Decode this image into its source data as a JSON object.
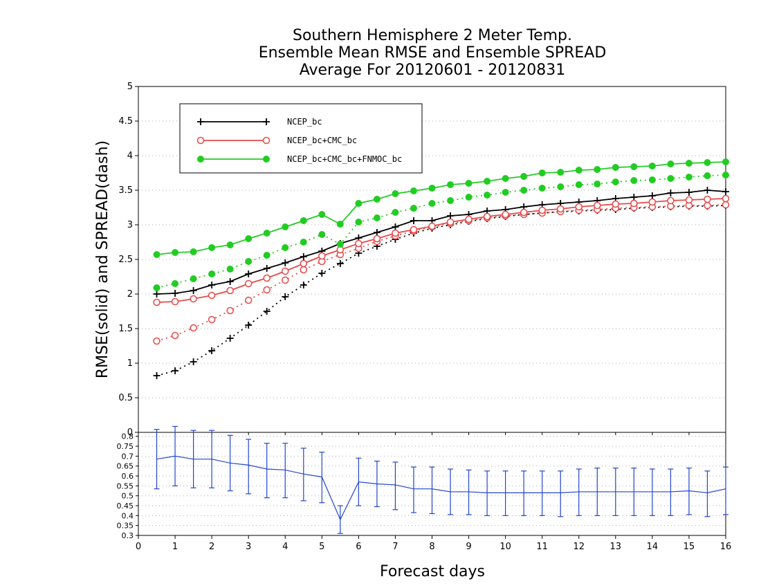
{
  "chart_data": {
    "type": "line",
    "title": [
      "Southern Hemisphere 2 Meter Temp.",
      "Ensemble Mean RMSE and Ensemble SPREAD",
      "Average For 20120601 - 20120831"
    ],
    "xlabel": "Forecast days",
    "ylabel": "RMSE(solid) and SPREAD(dash)",
    "xlim": [
      0,
      16
    ],
    "ylim": [
      0,
      5
    ],
    "x_ticks": [
      "0",
      "1",
      "2",
      "3",
      "4",
      "5",
      "6",
      "7",
      "8",
      "9",
      "10",
      "11",
      "12",
      "13",
      "14",
      "15",
      "16"
    ],
    "y_ticks": [
      "0",
      "0.5",
      "1",
      "1.5",
      "2",
      "2.5",
      "3",
      "3.5",
      "4",
      "4.5",
      "5"
    ],
    "x": [
      0.5,
      1,
      1.5,
      2,
      2.5,
      3,
      3.5,
      4,
      4.5,
      5,
      5.5,
      6,
      6.5,
      7,
      7.5,
      8,
      8.5,
      9,
      9.5,
      10,
      10.5,
      11,
      11.5,
      12,
      12.5,
      13,
      13.5,
      14,
      14.5,
      15,
      15.5,
      16
    ],
    "legend_placement": "top-left",
    "grid": true,
    "series": [
      {
        "name": "NCEP_bc",
        "color": "#000000",
        "marker": "plus",
        "rmse": [
          2.0,
          2.01,
          2.05,
          2.13,
          2.18,
          2.29,
          2.37,
          2.45,
          2.54,
          2.62,
          2.73,
          2.81,
          2.89,
          2.97,
          3.06,
          3.06,
          3.13,
          3.15,
          3.2,
          3.22,
          3.26,
          3.29,
          3.31,
          3.33,
          3.35,
          3.38,
          3.4,
          3.42,
          3.46,
          3.47,
          3.5,
          3.48
        ],
        "spread": [
          0.82,
          0.89,
          1.02,
          1.18,
          1.36,
          1.55,
          1.75,
          1.96,
          2.13,
          2.3,
          2.44,
          2.59,
          2.69,
          2.79,
          2.88,
          2.95,
          3.0,
          3.05,
          3.09,
          3.12,
          3.15,
          3.17,
          3.19,
          3.2,
          3.21,
          3.22,
          3.24,
          3.25,
          3.26,
          3.27,
          3.27,
          3.28
        ]
      },
      {
        "name": "NCEP_bc+CMC_bc",
        "color": "#e84848",
        "marker": "circle-open",
        "rmse": [
          1.88,
          1.89,
          1.93,
          1.98,
          2.05,
          2.15,
          2.23,
          2.33,
          2.44,
          2.55,
          2.64,
          2.73,
          2.8,
          2.88,
          2.93,
          2.98,
          3.04,
          3.08,
          3.12,
          3.15,
          3.18,
          3.21,
          3.23,
          3.26,
          3.28,
          3.3,
          3.31,
          3.33,
          3.35,
          3.36,
          3.37,
          3.38
        ],
        "spread": [
          1.32,
          1.4,
          1.51,
          1.63,
          1.76,
          1.91,
          2.06,
          2.2,
          2.35,
          2.47,
          2.57,
          2.66,
          2.76,
          2.84,
          2.91,
          2.97,
          3.02,
          3.06,
          3.1,
          3.13,
          3.15,
          3.17,
          3.19,
          3.21,
          3.22,
          3.24,
          3.25,
          3.26,
          3.27,
          3.28,
          3.28,
          3.29
        ]
      },
      {
        "name": "NCEP_bc+CMC_bc+FNMOC_bc",
        "color": "#22cc22",
        "marker": "circle-filled",
        "rmse": [
          2.57,
          2.6,
          2.61,
          2.67,
          2.71,
          2.8,
          2.88,
          2.97,
          3.06,
          3.15,
          3.01,
          3.31,
          3.37,
          3.45,
          3.49,
          3.53,
          3.58,
          3.6,
          3.63,
          3.67,
          3.7,
          3.75,
          3.76,
          3.79,
          3.8,
          3.83,
          3.84,
          3.85,
          3.88,
          3.89,
          3.9,
          3.91
        ],
        "spread": [
          2.09,
          2.15,
          2.22,
          2.29,
          2.36,
          2.47,
          2.56,
          2.67,
          2.75,
          2.86,
          2.72,
          3.04,
          3.1,
          3.18,
          3.24,
          3.31,
          3.35,
          3.4,
          3.43,
          3.47,
          3.5,
          3.53,
          3.55,
          3.58,
          3.59,
          3.62,
          3.64,
          3.65,
          3.67,
          3.69,
          3.71,
          3.72
        ]
      }
    ],
    "lower_panel": {
      "type": "line",
      "ylim": [
        0.3,
        0.82
      ],
      "y_ticks": [
        "0.3",
        "0.35",
        "0.4",
        "0.45",
        "0.5",
        "0.55",
        "0.6",
        "0.65",
        "0.7",
        "0.75",
        "0.8"
      ],
      "color": "#2244cc",
      "values": [
        0.685,
        0.7,
        0.685,
        0.685,
        0.665,
        0.655,
        0.635,
        0.63,
        0.61,
        0.595,
        0.38,
        0.57,
        0.56,
        0.555,
        0.535,
        0.535,
        0.52,
        0.52,
        0.515,
        0.515,
        0.515,
        0.515,
        0.515,
        0.52,
        0.52,
        0.52,
        0.52,
        0.52,
        0.52,
        0.525,
        0.515,
        0.535
      ],
      "err_low": [
        0.535,
        0.55,
        0.54,
        0.54,
        0.525,
        0.51,
        0.49,
        0.49,
        0.475,
        0.465,
        0.31,
        0.45,
        0.445,
        0.43,
        0.415,
        0.41,
        0.405,
        0.405,
        0.4,
        0.4,
        0.4,
        0.4,
        0.395,
        0.4,
        0.4,
        0.4,
        0.4,
        0.4,
        0.4,
        0.405,
        0.395,
        0.405
      ],
      "err_high": [
        0.835,
        0.85,
        0.83,
        0.83,
        0.805,
        0.785,
        0.765,
        0.765,
        0.74,
        0.72,
        0.45,
        0.69,
        0.675,
        0.67,
        0.645,
        0.645,
        0.635,
        0.63,
        0.625,
        0.625,
        0.625,
        0.625,
        0.625,
        0.635,
        0.64,
        0.64,
        0.64,
        0.635,
        0.635,
        0.64,
        0.625,
        0.645
      ]
    }
  }
}
